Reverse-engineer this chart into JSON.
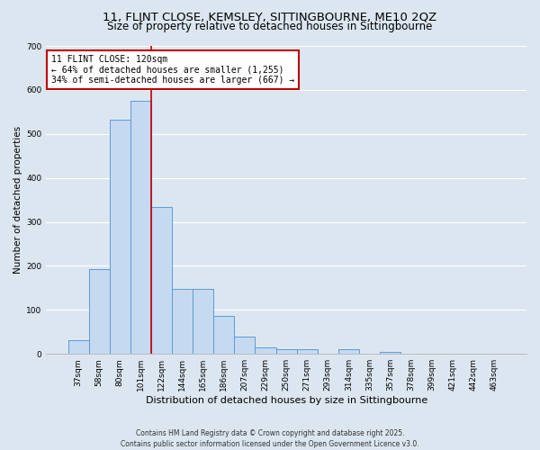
{
  "title": "11, FLINT CLOSE, KEMSLEY, SITTINGBOURNE, ME10 2QZ",
  "subtitle": "Size of property relative to detached houses in Sittingbourne",
  "bar_labels": [
    "37sqm",
    "58sqm",
    "80sqm",
    "101sqm",
    "122sqm",
    "144sqm",
    "165sqm",
    "186sqm",
    "207sqm",
    "229sqm",
    "250sqm",
    "271sqm",
    "293sqm",
    "314sqm",
    "335sqm",
    "357sqm",
    "378sqm",
    "399sqm",
    "421sqm",
    "442sqm",
    "463sqm"
  ],
  "bar_values": [
    32,
    193,
    533,
    575,
    333,
    148,
    148,
    86,
    40,
    14,
    11,
    10,
    0,
    10,
    0,
    5,
    0,
    0,
    0,
    0,
    0
  ],
  "bar_color": "#c5d9f1",
  "bar_edge_color": "#5b9bd5",
  "ylim": [
    0,
    700
  ],
  "yticks": [
    0,
    100,
    200,
    300,
    400,
    500,
    600,
    700
  ],
  "xlabel": "Distribution of detached houses by size in Sittingbourne",
  "ylabel": "Number of detached properties",
  "vline_x_index": 4,
  "vline_color": "#c00000",
  "annotation_title": "11 FLINT CLOSE: 120sqm",
  "annotation_line1": "← 64% of detached houses are smaller (1,255)",
  "annotation_line2": "34% of semi-detached houses are larger (667) →",
  "annotation_box_color": "#ffffff",
  "annotation_box_edge": "#c00000",
  "bg_color": "#dce6f1",
  "footer_line1": "Contains HM Land Registry data © Crown copyright and database right 2025.",
  "footer_line2": "Contains public sector information licensed under the Open Government Licence v3.0.",
  "title_fontsize": 9.5,
  "subtitle_fontsize": 8.5,
  "xlabel_fontsize": 8,
  "ylabel_fontsize": 7.5,
  "tick_fontsize": 6.5,
  "grid_color": "#ffffff",
  "footer_fontsize": 5.5
}
